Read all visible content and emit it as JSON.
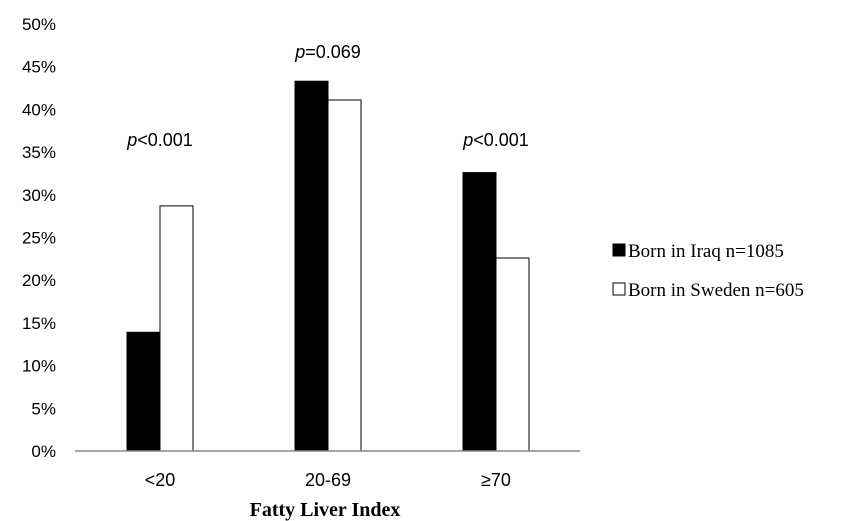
{
  "chart_data": {
    "type": "bar",
    "title": "",
    "xlabel": "Fatty Liver Index",
    "ylabel": "",
    "categories": [
      "<20",
      "20-69",
      "≥70"
    ],
    "series": [
      {
        "name": "Born in Iraq n=1085",
        "values": [
          13.9,
          43.3,
          32.6
        ],
        "color": "#000000"
      },
      {
        "name": "Born in Sweden n=605",
        "values": [
          28.7,
          41.1,
          22.6
        ],
        "color": "#ffffff"
      }
    ],
    "ylim": [
      0,
      50
    ],
    "yticks": [
      0,
      5,
      10,
      15,
      20,
      25,
      30,
      35,
      40,
      45,
      50
    ],
    "ytick_suffix": "%",
    "grid": false,
    "legend_position": "right",
    "annotations": [
      {
        "category": "<20",
        "prefix": "p",
        "text": "<0.001"
      },
      {
        "category": "20-69",
        "prefix": "p",
        "text": "=0.069"
      },
      {
        "category": "≥70",
        "prefix": "p",
        "text": "<0.001"
      }
    ]
  }
}
